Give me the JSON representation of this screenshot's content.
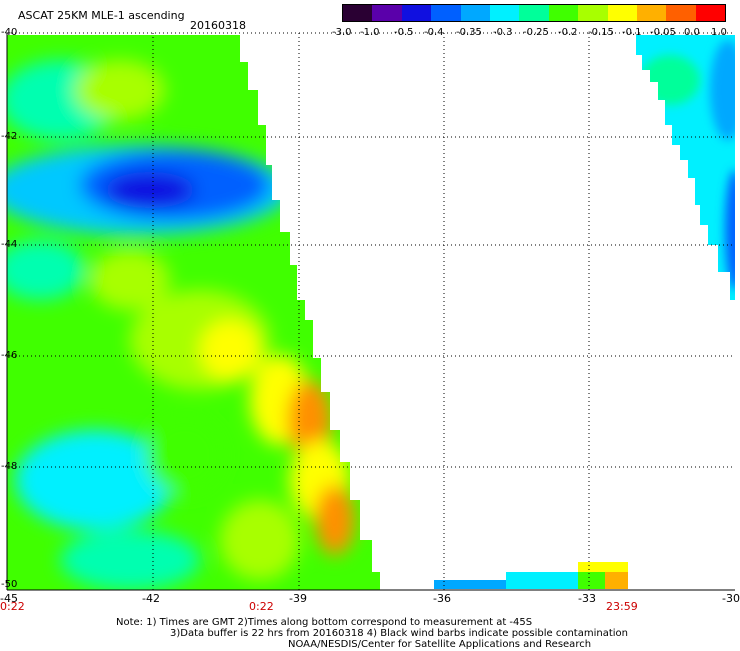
{
  "header": {
    "title": "ASCAT 25KM MLE-1 ascending",
    "date": "20160318"
  },
  "colorbar": {
    "labels": [
      "-3.0",
      "-1.0",
      "-0.5",
      "-0.4",
      "-0.35",
      "-0.3",
      "-0.25",
      "-0.2",
      "-0.15",
      "-0.1",
      "-0.05",
      "0.0",
      "1.0"
    ],
    "colors": [
      "#2a0033",
      "#5a00aa",
      "#1010e0",
      "#0060ff",
      "#00a8ff",
      "#00f0ff",
      "#00ff9a",
      "#40ff00",
      "#a8ff00",
      "#ffff00",
      "#ffb000",
      "#ff6000",
      "#ff0000"
    ]
  },
  "axes": {
    "lat_labels": [
      "-40",
      "-42",
      "-44",
      "-46",
      "-48",
      "-50"
    ],
    "lon_labels": [
      "-45",
      "-42",
      "-39",
      "-36",
      "-33",
      "-30"
    ]
  },
  "times": {
    "left": "0:22",
    "middle": "0:22",
    "right": "23:59"
  },
  "notes": {
    "line1": "Note: 1) Times are GMT 2)Times along bottom correspond to measurement at -45S",
    "line2": "3)Data buffer is 22 hrs from 20160318 4) Black wind barbs indicate possible contamination",
    "line3": "NOAA/NESDIS/Center for Satellite Applications and Research"
  },
  "map_colors": {
    "cyan": "#00f0ff",
    "green": "#40ff00",
    "lime": "#a8ff00",
    "yellow": "#ffff00",
    "blue": "#0060ff",
    "orange": "#ff9000"
  }
}
